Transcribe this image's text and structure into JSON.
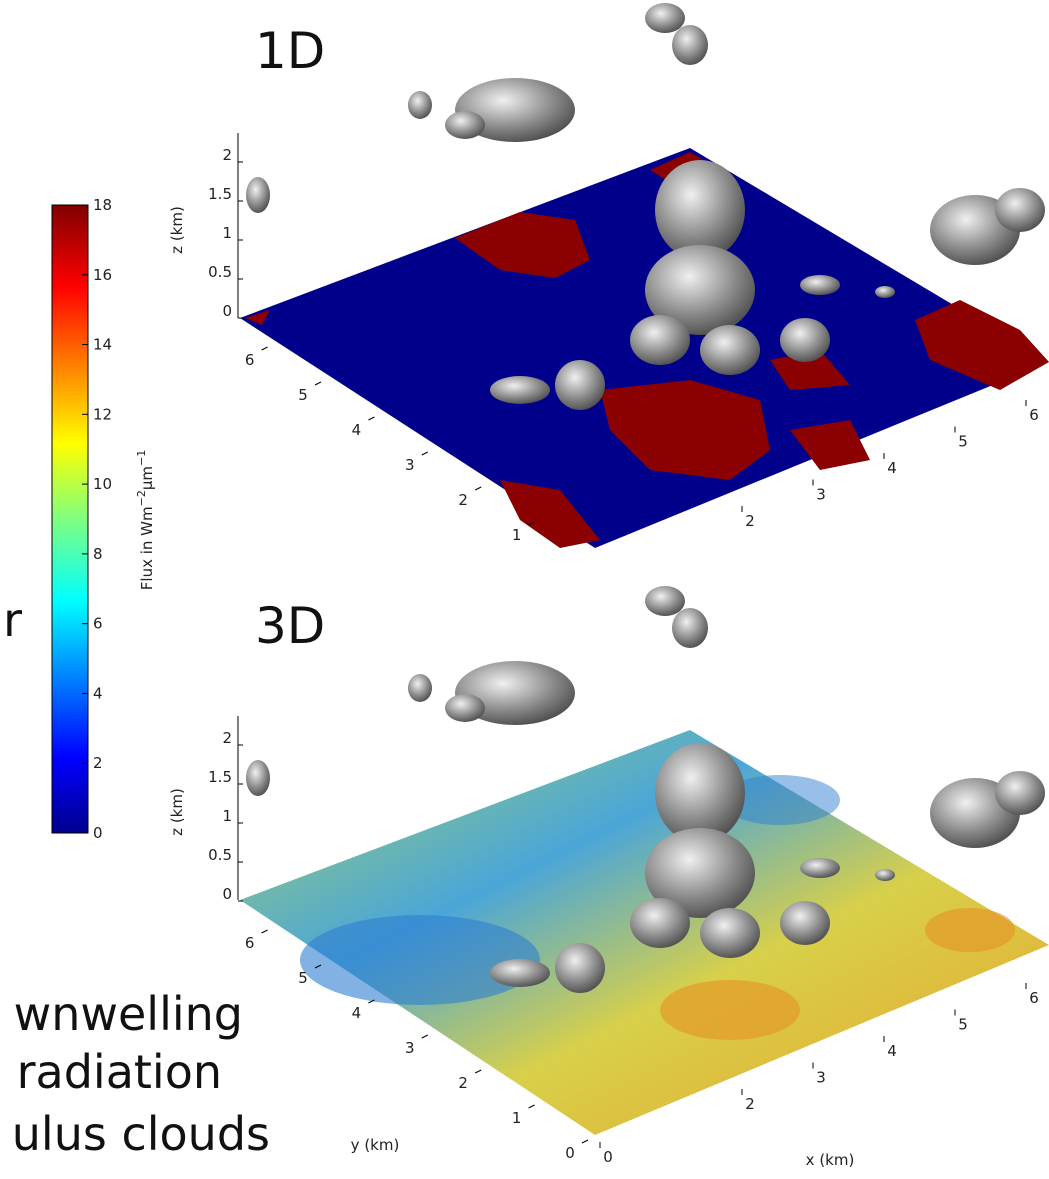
{
  "slide_text": {
    "fragment": "r",
    "lines": [
      "wnwelling",
      "radiation",
      "ulus clouds"
    ]
  },
  "colorbar": {
    "label": {
      "base": "Flux in Wm",
      "sup1": "−2",
      "unit": "µm",
      "sup2": "−1"
    },
    "ticks": [
      0,
      2,
      4,
      6,
      8,
      10,
      12,
      14,
      16,
      18
    ]
  },
  "panels": [
    {
      "title": "1D",
      "z_label": "z (km)",
      "z_ticks": [
        0,
        0.5,
        1,
        1.5,
        2
      ],
      "y_ticks": [
        1,
        2,
        3,
        4,
        5,
        6
      ],
      "x_ticks": [
        2,
        3,
        4,
        5,
        6
      ]
    },
    {
      "title": "3D",
      "z_label": "z (km)",
      "z_ticks": [
        0,
        0.5,
        1,
        1.5,
        2
      ],
      "y_ticks": [
        0,
        1,
        2,
        3,
        4,
        5,
        6
      ],
      "x_ticks": [
        0,
        2,
        3,
        4,
        5,
        6
      ],
      "y_label": "y (km)",
      "x_label": "x (km)"
    }
  ]
}
